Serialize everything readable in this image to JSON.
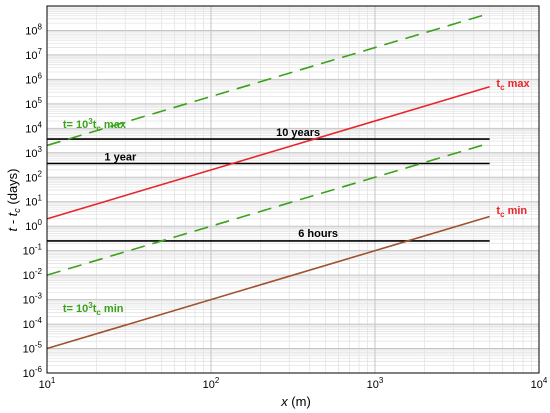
{
  "chart_data": {
    "type": "line",
    "title": "",
    "xlabel_var": "x",
    "xlabel_unit": " (m)",
    "ylabel_main": "t - t",
    "ylabel_sub": "c",
    "ylabel_unit": " (days)",
    "xscale": "log",
    "yscale": "log",
    "xlim": [
      10,
      10000
    ],
    "ylim": [
      1e-06,
      1000000000.0
    ],
    "grid": true,
    "x_tick_labels": [
      {
        "value": 10,
        "base": "10",
        "exp": "1"
      },
      {
        "value": 100,
        "base": "10",
        "exp": "2"
      },
      {
        "value": 1000,
        "base": "10",
        "exp": "3"
      },
      {
        "value": 10000,
        "base": "10",
        "exp": "4"
      }
    ],
    "y_tick_labels": [
      {
        "value": 1e-06,
        "base": "10",
        "exp": "-6"
      },
      {
        "value": 1e-05,
        "base": "10",
        "exp": "-5"
      },
      {
        "value": 0.0001,
        "base": "10",
        "exp": "-4"
      },
      {
        "value": 0.001,
        "base": "10",
        "exp": "-3"
      },
      {
        "value": 0.01,
        "base": "10",
        "exp": "-2"
      },
      {
        "value": 0.1,
        "base": "10",
        "exp": "-1"
      },
      {
        "value": 1,
        "base": "10",
        "exp": "0"
      },
      {
        "value": 10,
        "base": "10",
        "exp": "1"
      },
      {
        "value": 100,
        "base": "10",
        "exp": "2"
      },
      {
        "value": 1000,
        "base": "10",
        "exp": "3"
      },
      {
        "value": 10000,
        "base": "10",
        "exp": "4"
      },
      {
        "value": 100000,
        "base": "10",
        "exp": "5"
      },
      {
        "value": 1000000,
        "base": "10",
        "exp": "6"
      },
      {
        "value": 10000000,
        "base": "10",
        "exp": "7"
      },
      {
        "value": 100000000,
        "base": "10",
        "exp": "8"
      }
    ],
    "series": [
      {
        "key": "tc-max",
        "color": "#e8252b",
        "dash": "none",
        "x": [
          10,
          5000
        ],
        "y": [
          2.0,
          500000
        ]
      },
      {
        "key": "tc-min",
        "color": "#a0522d",
        "dash": "none",
        "x": [
          10,
          5000
        ],
        "y": [
          1e-05,
          2.5
        ]
      },
      {
        "key": "1000tc-max",
        "color": "#3aa21b",
        "dash": "dashed",
        "x": [
          10,
          5000
        ],
        "y": [
          2000,
          500000000
        ]
      },
      {
        "key": "1000tc-min",
        "color": "#3aa21b",
        "dash": "dashed",
        "x": [
          10,
          5000
        ],
        "y": [
          0.01,
          2500
        ]
      }
    ],
    "reference_lines": [
      {
        "key": "ten-years",
        "y": 3650,
        "x": [
          10,
          5000
        ],
        "color": "#000000"
      },
      {
        "key": "one-year",
        "y": 365,
        "x": [
          10,
          5000
        ],
        "color": "#000000"
      },
      {
        "key": "six-hours",
        "y": 0.25,
        "x": [
          10,
          5000
        ],
        "color": "#000000"
      }
    ],
    "annotations": [
      {
        "key": "tc-max-label",
        "text": "t",
        "sub": "c",
        "tail": " max",
        "color": "#e8252b",
        "x": 5500,
        "y": 700000
      },
      {
        "key": "tc-min-label",
        "text": "t",
        "sub": "c",
        "tail": " min",
        "color": "#e8252b",
        "x": 5500,
        "y": 4.5
      },
      {
        "key": "1000tc-max-label",
        "text": "t= 10",
        "sup": "3",
        "mid": "t",
        "sub": "c",
        "tail": " max",
        "color": "#3aa21b",
        "x": 12.5,
        "y": 15000
      },
      {
        "key": "1000tc-min-label",
        "text": "t= 10",
        "sup": "3",
        "mid": "t",
        "sub": "c",
        "tail": " min",
        "color": "#3aa21b",
        "x": 12.5,
        "y": 0.00045
      },
      {
        "key": "ten-years-label",
        "text": "10 years",
        "color": "#000000",
        "x": 340,
        "y": 7200
      },
      {
        "key": "one-year-label",
        "text": "1 year",
        "color": "#000000",
        "x": 28,
        "y": 720
      },
      {
        "key": "six-hours-label",
        "text": "6 hours",
        "color": "#000000",
        "x": 450,
        "y": 0.52
      }
    ]
  }
}
